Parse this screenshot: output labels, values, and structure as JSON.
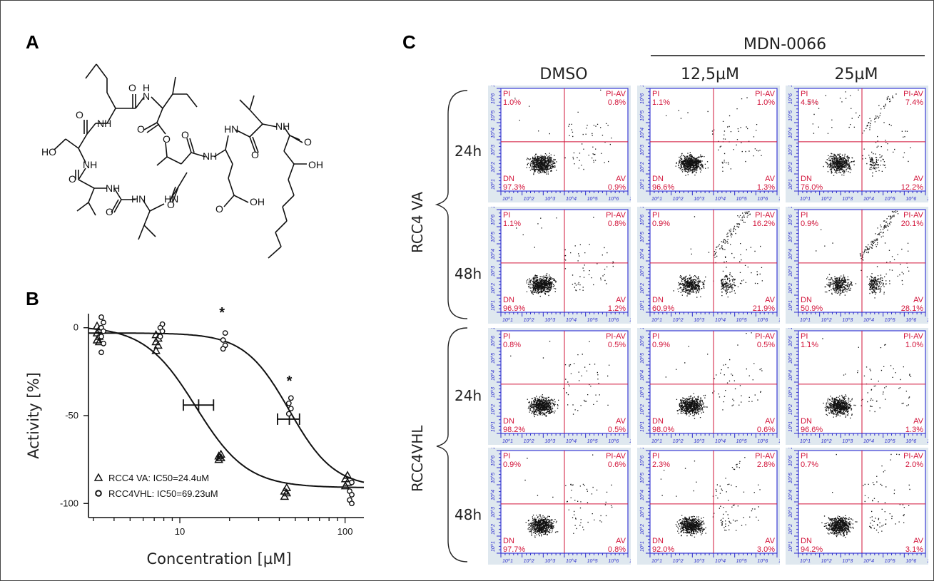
{
  "panel_labels": {
    "a": "A",
    "b": "B",
    "c": "C"
  },
  "panel_c": {
    "compound": "MDN-0066",
    "columns": [
      "DMSO",
      "12,5µM",
      "25µM"
    ],
    "cell_lines": [
      "RCC4 VA",
      "RCC4VHL"
    ],
    "rows": [
      "24h",
      "48h",
      "24h",
      "48h"
    ],
    "quadrant_names": {
      "ul": "PI",
      "ur": "PI-AV",
      "ll": "DN",
      "lr": "AV"
    }
  },
  "chart_data": [
    {
      "type": "scatter",
      "panel": "B",
      "xlabel": "Concentration [µM]",
      "ylabel": "Activity [%]",
      "xscale": "log",
      "xlim": [
        2.8,
        130
      ],
      "ylim": [
        -108,
        8
      ],
      "xticks": [
        "10",
        "100"
      ],
      "yticks": [
        "0",
        "-50",
        "-100"
      ],
      "legend_position": "bottom-left",
      "significance_marks": [
        {
          "x": 18,
          "y": 6,
          "text": "*"
        },
        {
          "x": 46,
          "y": -33,
          "text": "*"
        }
      ],
      "series": [
        {
          "name": "RCC4 VA: IC50=24.4uM",
          "marker": "triangle",
          "points": [
            [
              3.3,
              1
            ],
            [
              3.3,
              -1
            ],
            [
              3.3,
              -3
            ],
            [
              3.3,
              -5
            ],
            [
              3.3,
              -7
            ],
            [
              3.3,
              -8
            ],
            [
              7.5,
              -4
            ],
            [
              7.5,
              -6
            ],
            [
              7.5,
              -8
            ],
            [
              7.5,
              -10
            ],
            [
              7.5,
              -13
            ],
            [
              18,
              -72
            ],
            [
              18,
              -73
            ],
            [
              18,
              -74
            ],
            [
              18,
              -75
            ],
            [
              45,
              -91
            ],
            [
              45,
              -93
            ],
            [
              45,
              -94
            ],
            [
              45,
              -96
            ],
            [
              105,
              -84
            ],
            [
              105,
              -86
            ],
            [
              105,
              -88
            ],
            [
              105,
              -90
            ]
          ],
          "curve": {
            "top": 1,
            "bottom": -91,
            "ec50": 12.5,
            "hill": 2.8
          },
          "mean_marker": {
            "x": 13,
            "y": -44,
            "xerr": [
              10.5,
              16
            ]
          }
        },
        {
          "name": "RCC4VHL: IC50=69.23uM",
          "marker": "circle",
          "points": [
            [
              3.3,
              6
            ],
            [
              3.3,
              3
            ],
            [
              3.3,
              0
            ],
            [
              3.3,
              -2
            ],
            [
              3.3,
              -5
            ],
            [
              3.3,
              -9
            ],
            [
              3.3,
              -14
            ],
            [
              7.5,
              2
            ],
            [
              7.5,
              0
            ],
            [
              7.5,
              -2
            ],
            [
              7.5,
              -5
            ],
            [
              18,
              -3
            ],
            [
              18,
              -7
            ],
            [
              18,
              -10
            ],
            [
              18,
              -12
            ],
            [
              45,
              -40
            ],
            [
              45,
              -43
            ],
            [
              45,
              -46
            ],
            [
              45,
              -49
            ],
            [
              105,
              -88
            ],
            [
              105,
              -93
            ],
            [
              105,
              -95
            ],
            [
              105,
              -98
            ],
            [
              105,
              -100
            ]
          ],
          "curve": {
            "top": -3,
            "bottom": -91,
            "ec50": 46,
            "hill": 3.2
          },
          "mean_marker": {
            "x": 46,
            "y": -52,
            "xerr": [
              39,
              53
            ]
          }
        }
      ]
    },
    {
      "type": "scatter",
      "panel": "C",
      "plot_type": "flow cytometry dot plots (Annexin V / PI)",
      "axis_tick_labels": [
        "10^1",
        "10^2",
        "10^3",
        "10^4",
        "10^5",
        "10^6",
        "10^7.2"
      ],
      "panels": [
        {
          "cell_line": "RCC4 VA",
          "time": "24h",
          "treatment": "DMSO",
          "PI": "1.0%",
          "PI-AV": "0.8%",
          "DN": "97.3%",
          "AV": "0.9%"
        },
        {
          "cell_line": "RCC4 VA",
          "time": "24h",
          "treatment": "12,5µM",
          "PI": "1.1%",
          "PI-AV": "1.0%",
          "DN": "96.6%",
          "AV": "1.3%"
        },
        {
          "cell_line": "RCC4 VA",
          "time": "24h",
          "treatment": "25µM",
          "PI": "4.5%",
          "PI-AV": "7.4%",
          "DN": "76.0%",
          "AV": "12.2%"
        },
        {
          "cell_line": "RCC4 VA",
          "time": "48h",
          "treatment": "DMSO",
          "PI": "1.1%",
          "PI-AV": "0.8%",
          "DN": "96.9%",
          "AV": "1.2%"
        },
        {
          "cell_line": "RCC4 VA",
          "time": "48h",
          "treatment": "12,5µM",
          "PI": "0.9%",
          "PI-AV": "16.2%",
          "DN": "60.9%",
          "AV": "21.9%"
        },
        {
          "cell_line": "RCC4 VA",
          "time": "48h",
          "treatment": "25µM",
          "PI": "0.9%",
          "PI-AV": "20.1%",
          "DN": "50.9%",
          "AV": "28.1%"
        },
        {
          "cell_line": "RCC4VHL",
          "time": "24h",
          "treatment": "DMSO",
          "PI": "0.8%",
          "PI-AV": "0.5%",
          "DN": "98.2%",
          "AV": "0.5%"
        },
        {
          "cell_line": "RCC4VHL",
          "time": "24h",
          "treatment": "12,5µM",
          "PI": "0.9%",
          "PI-AV": "0.5%",
          "DN": "98.0%",
          "AV": "0.6%"
        },
        {
          "cell_line": "RCC4VHL",
          "time": "24h",
          "treatment": "25µM",
          "PI": "1.1%",
          "PI-AV": "1.0%",
          "DN": "96.6%",
          "AV": "1.3%"
        },
        {
          "cell_line": "RCC4VHL",
          "time": "48h",
          "treatment": "DMSO",
          "PI": "0.9%",
          "PI-AV": "0.6%",
          "DN": "97.7%",
          "AV": "0.8%"
        },
        {
          "cell_line": "RCC4VHL",
          "time": "48h",
          "treatment": "12,5µM",
          "PI": "2.3%",
          "PI-AV": "2.8%",
          "DN": "92.0%",
          "AV": "3.0%"
        },
        {
          "cell_line": "RCC4VHL",
          "time": "48h",
          "treatment": "25µM",
          "PI": "0.7%",
          "PI-AV": "2.0%",
          "DN": "94.2%",
          "AV": "3.1%"
        }
      ]
    }
  ],
  "colors": {
    "quadrant_text": "#d2143a",
    "axis_frame": "#3b3bd6",
    "tick_color": "#2d2dcc",
    "panel_bg": "#dfe8ef",
    "dots": "#111111"
  }
}
